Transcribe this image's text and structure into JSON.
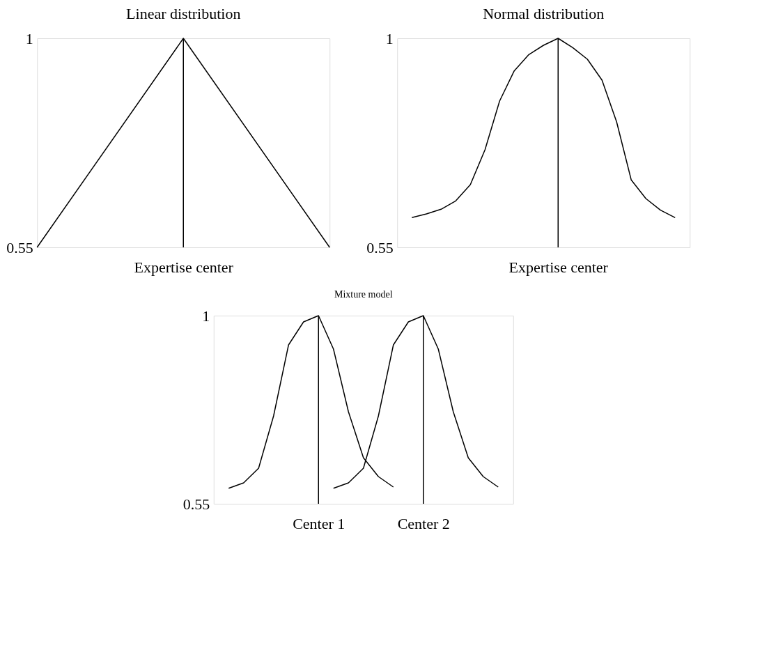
{
  "chart_data": [
    {
      "type": "line",
      "title": "Linear distribution",
      "categories": [
        null,
        "Expertise center",
        null
      ],
      "ylim": [
        0.55,
        1
      ],
      "yticks": [
        0.55,
        1
      ],
      "series": [
        {
          "color": "#000000",
          "values": [
            0.55,
            1,
            0.55
          ]
        }
      ],
      "ref_lines": [
        {
          "axis": "x",
          "value": "Expertise center",
          "color": "#000000"
        }
      ]
    },
    {
      "type": "line",
      "title": "Normal distribution",
      "categories": [
        null,
        null,
        null,
        null,
        null,
        null,
        null,
        null,
        null,
        null,
        null,
        "Expertise center",
        null,
        null,
        null,
        null,
        null,
        null,
        null,
        null,
        null
      ],
      "ylim": [
        0.55,
        1
      ],
      "yticks": [
        0.55,
        1
      ],
      "series": [
        {
          "color": "#000000",
          "values": [
            null,
            0.614,
            0.622,
            0.632,
            0.65,
            0.685,
            0.76,
            0.865,
            0.93,
            0.965,
            0.985,
            1,
            0.98,
            0.955,
            0.91,
            0.82,
            0.695,
            0.655,
            0.63,
            0.614,
            null
          ]
        }
      ],
      "ref_lines": [
        {
          "axis": "x",
          "value": "Expertise center",
          "color": "#000000"
        }
      ]
    },
    {
      "type": "line",
      "title": "Mixture model",
      "categories": [
        null,
        null,
        null,
        null,
        null,
        null,
        null,
        "Center 1",
        null,
        null,
        null,
        null,
        null,
        null,
        "Center 2",
        null,
        null,
        null,
        null,
        null,
        null
      ],
      "ylim": [
        0.55,
        1
      ],
      "yticks": [
        0.55,
        1
      ],
      "series": [
        {
          "color": "#000000",
          "values": [
            null,
            0.587,
            0.6,
            0.635,
            0.76,
            0.93,
            0.985,
            1,
            0.92,
            0.77,
            0.66,
            0.615,
            0.59,
            null,
            null,
            null,
            null,
            null,
            null,
            null,
            null
          ]
        },
        {
          "color": "#000000",
          "values": [
            null,
            null,
            null,
            null,
            null,
            null,
            null,
            null,
            0.587,
            0.6,
            0.635,
            0.76,
            0.93,
            0.985,
            1,
            0.92,
            0.77,
            0.66,
            0.615,
            0.59,
            null
          ]
        }
      ],
      "ref_lines": [
        {
          "axis": "x",
          "value": "Center 1",
          "color": "#000000"
        },
        {
          "axis": "x",
          "value": "Center 2",
          "color": "#000000"
        }
      ]
    }
  ]
}
